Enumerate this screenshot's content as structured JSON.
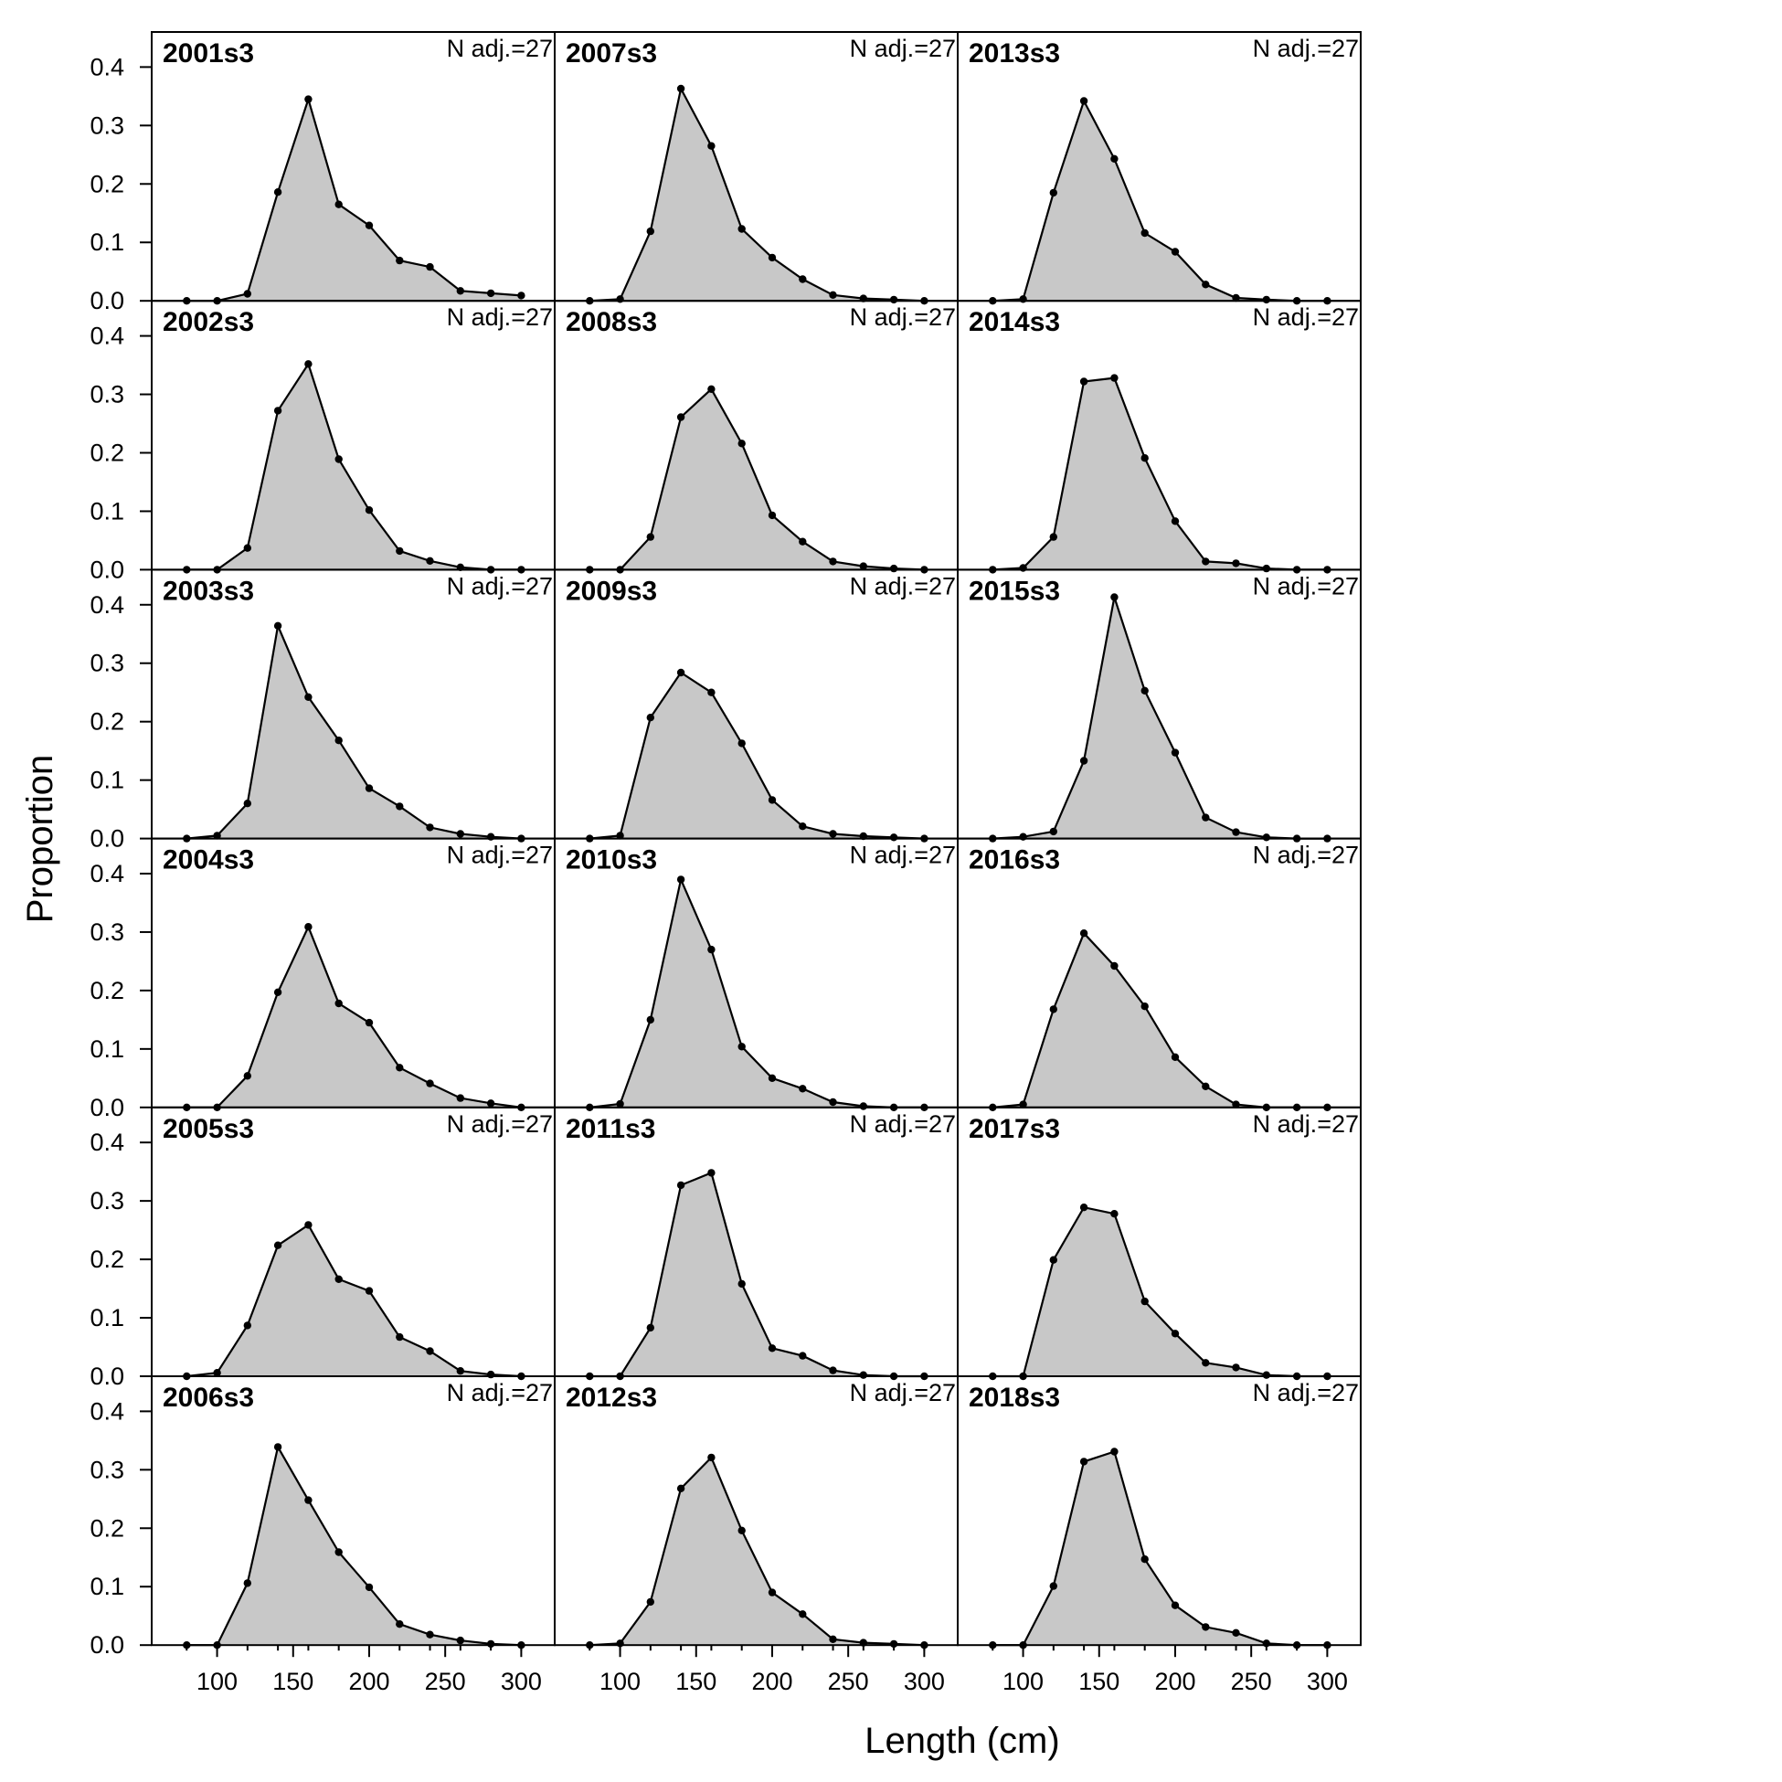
{
  "chart_data": {
    "type": "area",
    "layout": "6 rows x 3 columns panel grid, shared axes",
    "xlabel": "Length (cm)",
    "ylabel": "Proportion",
    "xlim": [
      57,
      322
    ],
    "ylim": [
      0,
      0.46
    ],
    "xticks": [
      100,
      150,
      200,
      250,
      300
    ],
    "yticks": [
      0.0,
      0.1,
      0.2,
      0.3,
      0.4
    ],
    "xtick_labels": [
      "100",
      "150",
      "200",
      "250",
      "300"
    ],
    "ytick_labels": [
      "0.0",
      "0.1",
      "0.2",
      "0.3",
      "0.4"
    ],
    "fill_color": "#c8c8c8",
    "line_color": "#000000",
    "x": [
      80,
      100,
      120,
      140,
      160,
      180,
      200,
      220,
      240,
      260,
      280,
      300
    ],
    "panels": [
      {
        "label": "2001s3",
        "n_label": "N adj.=27",
        "values": [
          0,
          0,
          0.012,
          0.186,
          0.345,
          0.165,
          0.129,
          0.069,
          0.058,
          0.017,
          0.013,
          0.009
        ]
      },
      {
        "label": "2007s3",
        "n_label": "N adj.=27",
        "values": [
          0,
          0.003,
          0.119,
          0.363,
          0.265,
          0.123,
          0.074,
          0.037,
          0.01,
          0.004,
          0.002,
          0
        ]
      },
      {
        "label": "2013s3",
        "n_label": "N adj.=27",
        "values": [
          0,
          0.003,
          0.185,
          0.342,
          0.243,
          0.116,
          0.084,
          0.028,
          0.005,
          0.002,
          0,
          0
        ]
      },
      {
        "label": "2002s3",
        "n_label": "N adj.=27",
        "values": [
          0,
          0,
          0.037,
          0.272,
          0.352,
          0.189,
          0.102,
          0.032,
          0.015,
          0.004,
          0,
          0
        ]
      },
      {
        "label": "2008s3",
        "n_label": "N adj.=27",
        "values": [
          0,
          0,
          0.056,
          0.261,
          0.309,
          0.216,
          0.093,
          0.048,
          0.014,
          0.006,
          0.002,
          0
        ]
      },
      {
        "label": "2014s3",
        "n_label": "N adj.=27",
        "values": [
          0,
          0.003,
          0.056,
          0.322,
          0.328,
          0.191,
          0.083,
          0.014,
          0.011,
          0.002,
          0,
          0
        ]
      },
      {
        "label": "2003s3",
        "n_label": "N adj.=27",
        "values": [
          0,
          0.005,
          0.06,
          0.364,
          0.242,
          0.168,
          0.086,
          0.055,
          0.019,
          0.008,
          0.003,
          0
        ]
      },
      {
        "label": "2009s3",
        "n_label": "N adj.=27",
        "values": [
          0,
          0.005,
          0.207,
          0.284,
          0.25,
          0.163,
          0.066,
          0.021,
          0.008,
          0.004,
          0.002,
          0
        ]
      },
      {
        "label": "2015s3",
        "n_label": "N adj.=27",
        "values": [
          0,
          0.003,
          0.012,
          0.133,
          0.413,
          0.253,
          0.147,
          0.036,
          0.011,
          0.002,
          0,
          0
        ]
      },
      {
        "label": "2004s3",
        "n_label": "N adj.=27",
        "values": [
          0,
          0,
          0.054,
          0.197,
          0.309,
          0.178,
          0.145,
          0.068,
          0.041,
          0.016,
          0.007,
          0
        ]
      },
      {
        "label": "2010s3",
        "n_label": "N adj.=27",
        "values": [
          0,
          0.006,
          0.15,
          0.39,
          0.27,
          0.104,
          0.05,
          0.032,
          0.009,
          0.002,
          0,
          0
        ]
      },
      {
        "label": "2016s3",
        "n_label": "N adj.=27",
        "values": [
          0,
          0.005,
          0.168,
          0.298,
          0.242,
          0.173,
          0.086,
          0.036,
          0.005,
          0,
          0,
          0
        ]
      },
      {
        "label": "2005s3",
        "n_label": "N adj.=27",
        "values": [
          0,
          0.006,
          0.087,
          0.224,
          0.259,
          0.166,
          0.146,
          0.067,
          0.043,
          0.009,
          0.003,
          0
        ]
      },
      {
        "label": "2011s3",
        "n_label": "N adj.=27",
        "values": [
          0,
          0,
          0.083,
          0.327,
          0.348,
          0.158,
          0.048,
          0.035,
          0.01,
          0.002,
          0,
          0
        ]
      },
      {
        "label": "2017s3",
        "n_label": "N adj.=27",
        "values": [
          0,
          0,
          0.199,
          0.289,
          0.278,
          0.128,
          0.073,
          0.023,
          0.015,
          0.002,
          0,
          0
        ]
      },
      {
        "label": "2006s3",
        "n_label": "N adj.=27",
        "values": [
          0,
          0,
          0.106,
          0.339,
          0.248,
          0.159,
          0.099,
          0.036,
          0.018,
          0.008,
          0.002,
          0
        ]
      },
      {
        "label": "2012s3",
        "n_label": "N adj.=27",
        "values": [
          0,
          0.003,
          0.074,
          0.268,
          0.321,
          0.196,
          0.09,
          0.053,
          0.01,
          0.004,
          0.002,
          0
        ]
      },
      {
        "label": "2018s3",
        "n_label": "N adj.=27",
        "values": [
          0,
          0,
          0.101,
          0.314,
          0.331,
          0.147,
          0.068,
          0.031,
          0.021,
          0.003,
          0,
          0
        ]
      }
    ]
  }
}
